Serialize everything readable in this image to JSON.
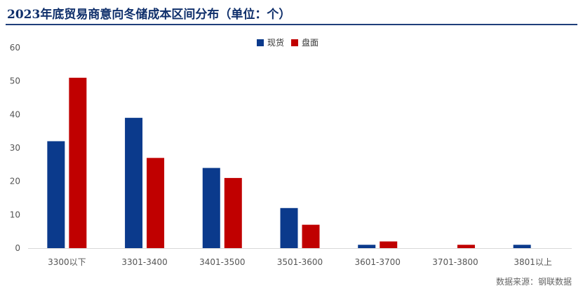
{
  "title": "2023年底贸易商意向冬储成本区间分布（单位：个）",
  "source": "数据来源：钢联数据",
  "colors": {
    "spot": "#0b3a8c",
    "futures": "#c00000",
    "title": "#0f2f6b"
  },
  "chart_data": {
    "type": "bar",
    "title": "2023年底贸易商意向冬储成本区间分布（单位：个）",
    "categories": [
      "3300以下",
      "3301-3400",
      "3401-3500",
      "3501-3600",
      "3601-3700",
      "3701-3800",
      "3801以上"
    ],
    "series": [
      {
        "name": "现货",
        "color": "#0b3a8c",
        "values": [
          32,
          39,
          24,
          12,
          1,
          0,
          1
        ]
      },
      {
        "name": "盘面",
        "color": "#c00000",
        "values": [
          51,
          27,
          21,
          7,
          2,
          1,
          0
        ]
      }
    ],
    "ylim": [
      0,
      60
    ],
    "yticks": [
      0,
      10,
      20,
      30,
      40,
      50,
      60
    ],
    "grid": false,
    "legend_position": "top-center"
  }
}
